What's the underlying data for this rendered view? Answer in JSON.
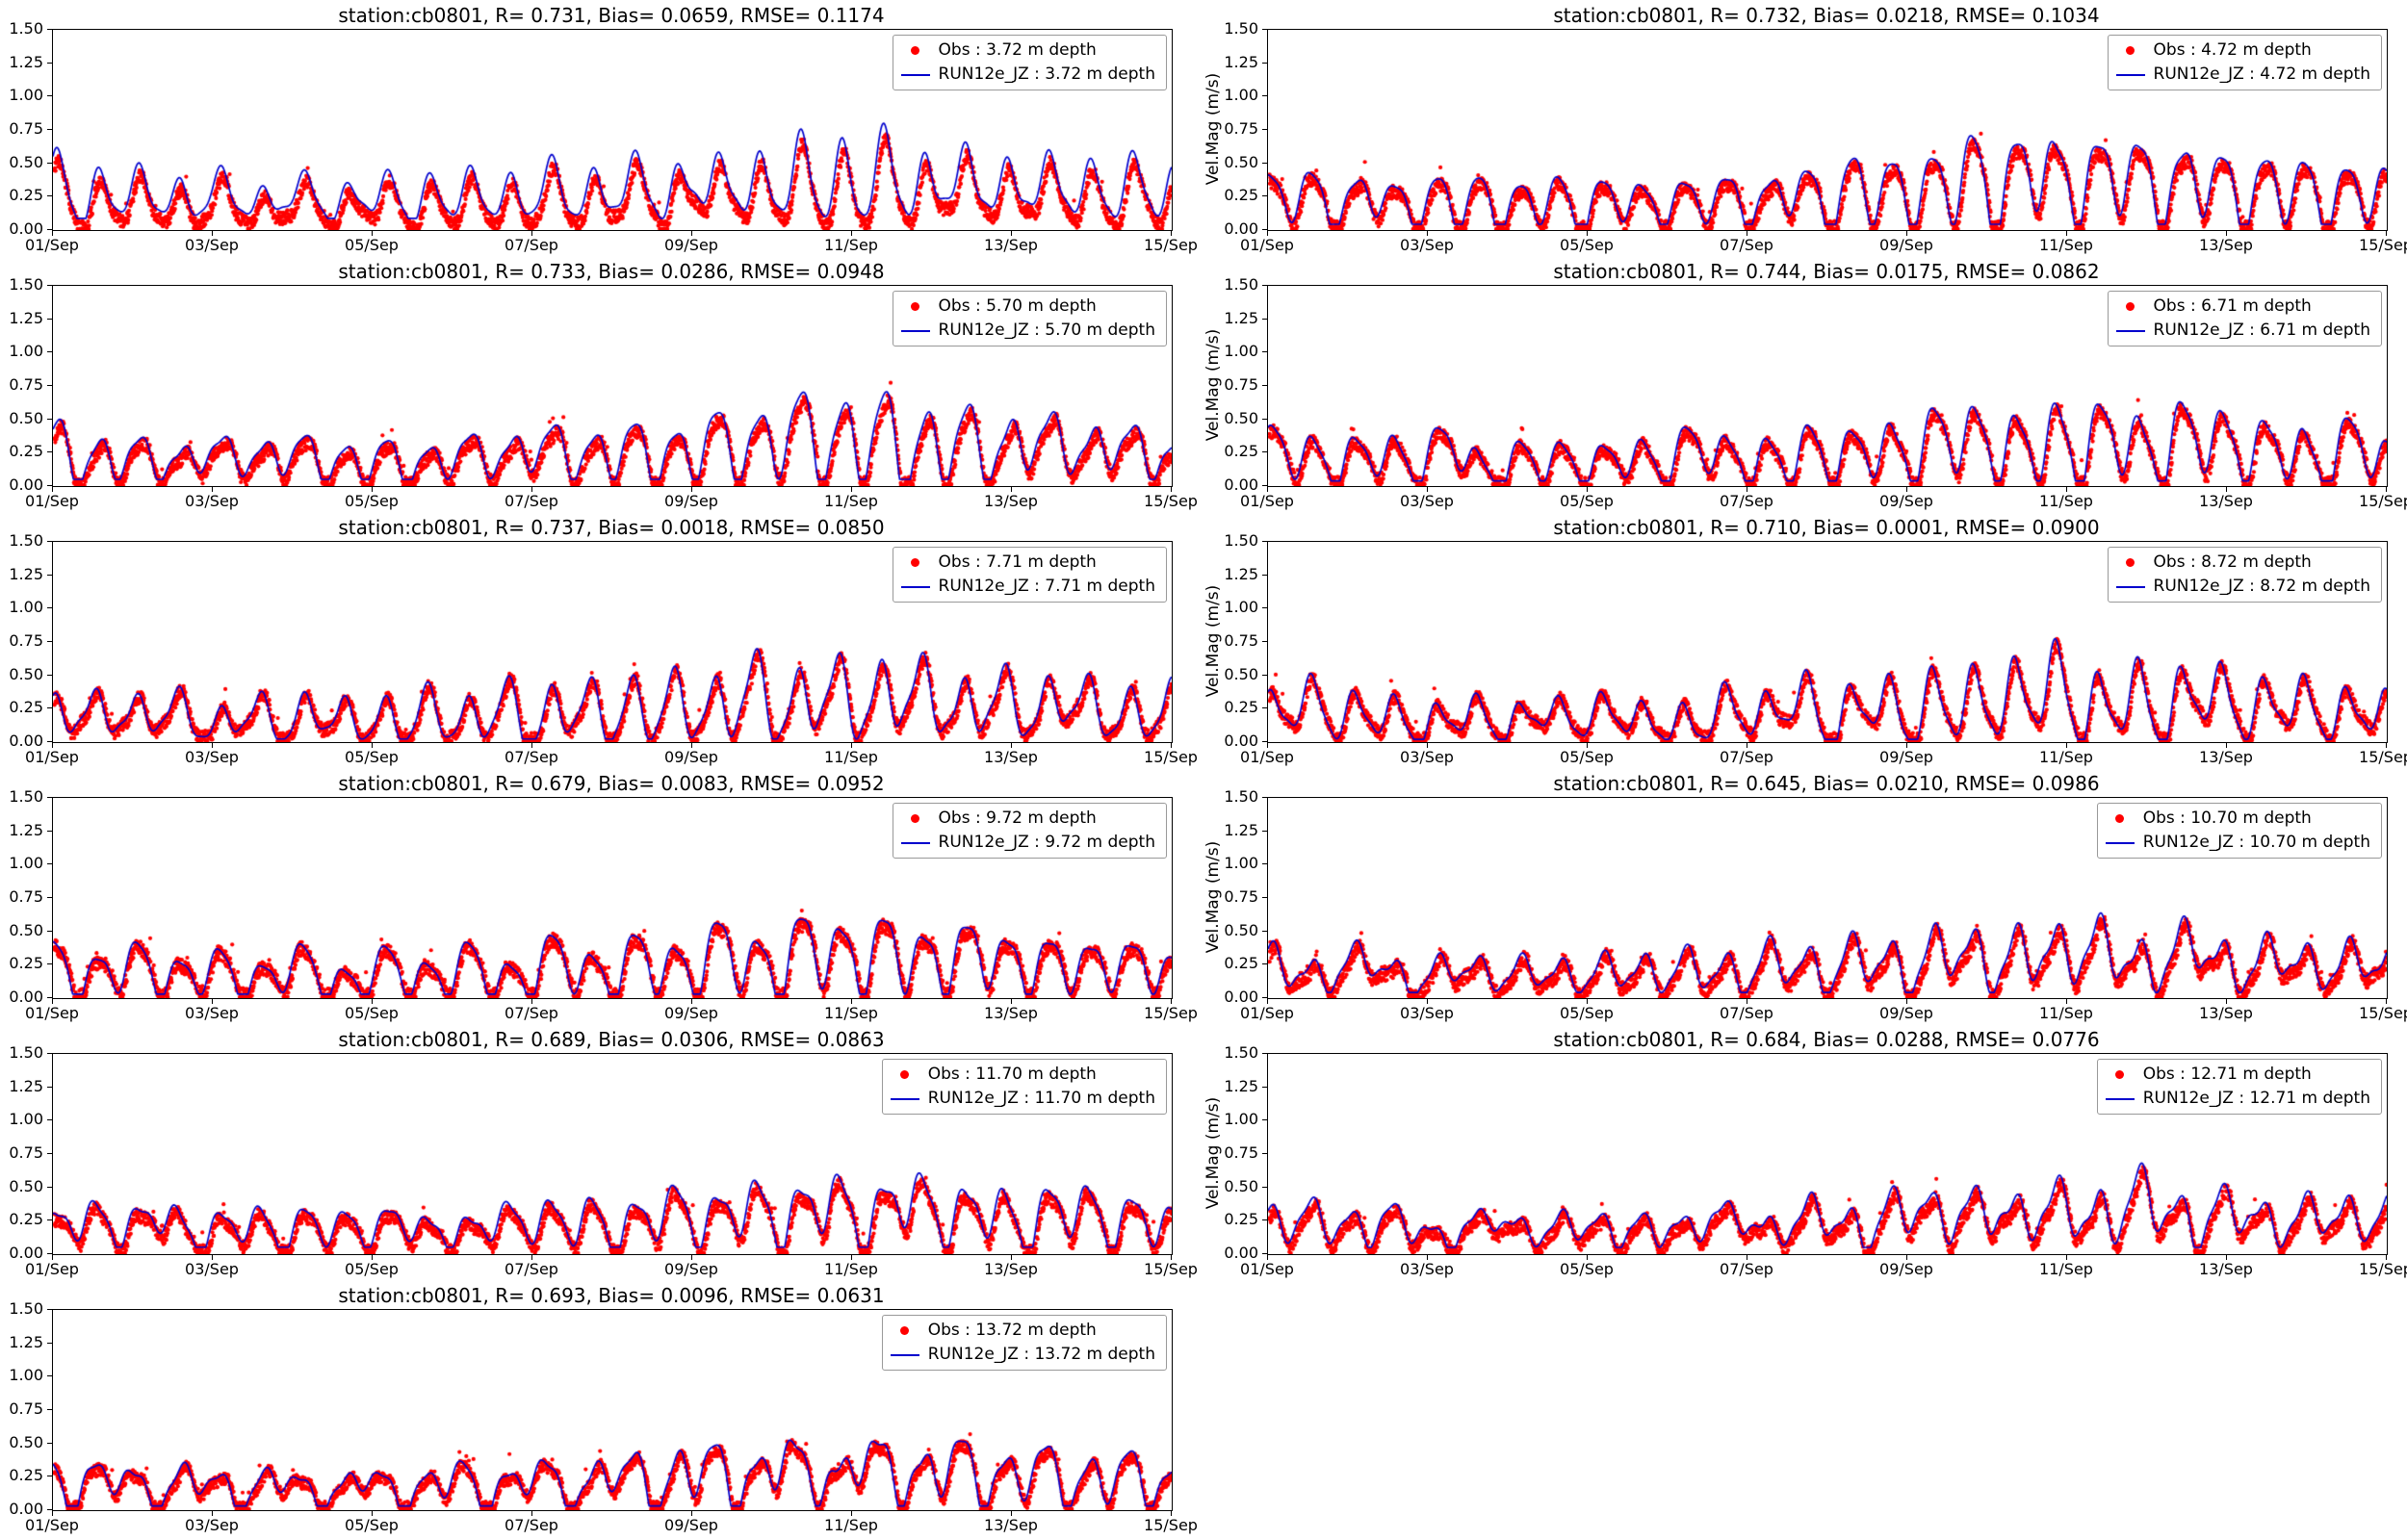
{
  "figure": {
    "background": "#ffffff",
    "text_color": "#000000"
  },
  "chart_data": {
    "type": "line+scatter",
    "station": "cb0801",
    "layout": {
      "rows": 6,
      "cols": 2,
      "note": "11 panels, last row left column only"
    },
    "ylim": [
      0.0,
      1.5
    ],
    "x_range_days": 14,
    "x_start_label": "01/Sep",
    "x_end_label": "15/Sep",
    "y_tick_labels": [
      "1.50",
      "1.25",
      "1.00",
      "0.75",
      "0.50",
      "0.25",
      "0.00"
    ],
    "x_tick_labels": [
      "01/Sep",
      "03/Sep",
      "05/Sep",
      "07/Sep",
      "09/Sep",
      "11/Sep",
      "13/Sep",
      "15/Sep"
    ],
    "colors": {
      "obs": "#ff0000",
      "model": "#0000cd",
      "axis": "#000000"
    },
    "series_names": [
      "Obs",
      "RUN12e_JZ"
    ],
    "panels": [
      {
        "title": "station:cb0801, R= 0.731, Bias= 0.0659, RMSE= 0.1174",
        "R": 0.731,
        "bias": 0.0659,
        "rmse": 0.1174,
        "depth_m": 3.72,
        "ylabel": "",
        "legend": [
          {
            "label": "Obs : 3.72 m depth"
          },
          {
            "label": "RUN12e_JZ : 3.72 m depth"
          }
        ],
        "sim": {
          "seed": 11,
          "base": 0.26,
          "amp": 0.21,
          "peak": 0.1,
          "model_bias": 0.066,
          "obs_noise": 0.05
        }
      },
      {
        "title": "station:cb0801, R= 0.732, Bias= 0.0218, RMSE= 0.1034",
        "R": 0.732,
        "bias": 0.0218,
        "rmse": 0.1034,
        "depth_m": 4.72,
        "ylabel": "Vel.Mag (m/s)",
        "legend": [
          {
            "label": "Obs : 4.72 m depth"
          },
          {
            "label": "RUN12e_JZ : 4.72 m depth"
          }
        ],
        "sim": {
          "seed": 12,
          "base": 0.27,
          "amp": 0.23,
          "peak": 0.32,
          "model_bias": 0.022,
          "obs_noise": 0.05
        }
      },
      {
        "title": "station:cb0801, R= 0.733, Bias= 0.0286, RMSE= 0.0948",
        "R": 0.733,
        "bias": 0.0286,
        "rmse": 0.0948,
        "depth_m": 5.7,
        "ylabel": "",
        "legend": [
          {
            "label": "Obs : 5.70 m depth"
          },
          {
            "label": "RUN12e_JZ : 5.70 m depth"
          }
        ],
        "sim": {
          "seed": 13,
          "base": 0.26,
          "amp": 0.22,
          "peak": 0.12,
          "model_bias": 0.029,
          "obs_noise": 0.05
        }
      },
      {
        "title": "station:cb0801, R= 0.744, Bias= 0.0175, RMSE= 0.0862",
        "R": 0.744,
        "bias": 0.0175,
        "rmse": 0.0862,
        "depth_m": 6.71,
        "ylabel": "Vel.Mag (m/s)",
        "legend": [
          {
            "label": "Obs : 6.71 m depth"
          },
          {
            "label": "RUN12e_JZ : 6.71 m depth"
          }
        ],
        "sim": {
          "seed": 14,
          "base": 0.26,
          "amp": 0.22,
          "peak": 0.16,
          "model_bias": 0.018,
          "obs_noise": 0.05
        }
      },
      {
        "title": "station:cb0801, R= 0.737, Bias= 0.0018, RMSE= 0.0850",
        "R": 0.737,
        "bias": 0.0018,
        "rmse": 0.085,
        "depth_m": 7.71,
        "ylabel": "",
        "legend": [
          {
            "label": "Obs : 7.71 m depth"
          },
          {
            "label": "RUN12e_JZ : 7.71 m depth"
          }
        ],
        "sim": {
          "seed": 15,
          "base": 0.26,
          "amp": 0.22,
          "peak": 0.18,
          "model_bias": 0.002,
          "obs_noise": 0.05
        }
      },
      {
        "title": "station:cb0801, R= 0.710, Bias= 0.0001, RMSE= 0.0900",
        "R": 0.71,
        "bias": 0.0001,
        "rmse": 0.09,
        "depth_m": 8.72,
        "ylabel": "Vel.Mag (m/s)",
        "legend": [
          {
            "label": "Obs : 8.72 m depth"
          },
          {
            "label": "RUN12e_JZ : 8.72 m depth"
          }
        ],
        "sim": {
          "seed": 16,
          "base": 0.26,
          "amp": 0.21,
          "peak": 0.16,
          "model_bias": 0.0,
          "obs_noise": 0.05
        }
      },
      {
        "title": "station:cb0801, R= 0.679, Bias= 0.0083, RMSE= 0.0952",
        "R": 0.679,
        "bias": 0.0083,
        "rmse": 0.0952,
        "depth_m": 9.72,
        "ylabel": "",
        "legend": [
          {
            "label": "Obs : 9.72 m depth"
          },
          {
            "label": "RUN12e_JZ : 9.72 m depth"
          }
        ],
        "sim": {
          "seed": 17,
          "base": 0.25,
          "amp": 0.21,
          "peak": 0.2,
          "model_bias": 0.008,
          "obs_noise": 0.055
        }
      },
      {
        "title": "station:cb0801, R= 0.645, Bias= 0.0210, RMSE= 0.0986",
        "R": 0.645,
        "bias": 0.021,
        "rmse": 0.0986,
        "depth_m": 10.7,
        "ylabel": "Vel.Mag (m/s)",
        "legend": [
          {
            "label": "Obs : 10.70 m depth"
          },
          {
            "label": "RUN12e_JZ : 10.70 m depth"
          }
        ],
        "sim": {
          "seed": 18,
          "base": 0.25,
          "amp": 0.19,
          "peak": 0.16,
          "model_bias": 0.021,
          "obs_noise": 0.055
        }
      },
      {
        "title": "station:cb0801, R= 0.689, Bias= 0.0306, RMSE= 0.0863",
        "R": 0.689,
        "bias": 0.0306,
        "rmse": 0.0863,
        "depth_m": 11.7,
        "ylabel": "",
        "legend": [
          {
            "label": "Obs : 11.70 m depth"
          },
          {
            "label": "RUN12e_JZ : 11.70 m depth"
          }
        ],
        "sim": {
          "seed": 19,
          "base": 0.25,
          "amp": 0.18,
          "peak": 0.15,
          "model_bias": 0.031,
          "obs_noise": 0.05
        }
      },
      {
        "title": "station:cb0801, R= 0.684, Bias= 0.0288, RMSE= 0.0776",
        "R": 0.684,
        "bias": 0.0288,
        "rmse": 0.0776,
        "depth_m": 12.71,
        "ylabel": "Vel.Mag (m/s)",
        "legend": [
          {
            "label": "Obs : 12.71 m depth"
          },
          {
            "label": "RUN12e_JZ : 12.71 m depth"
          }
        ],
        "sim": {
          "seed": 20,
          "base": 0.25,
          "amp": 0.17,
          "peak": 0.12,
          "model_bias": 0.029,
          "obs_noise": 0.05
        }
      },
      {
        "title": "station:cb0801, R= 0.693, Bias= 0.0096, RMSE= 0.0631",
        "R": 0.693,
        "bias": 0.0096,
        "rmse": 0.0631,
        "depth_m": 13.72,
        "ylabel": "",
        "legend": [
          {
            "label": "Obs : 13.72 m depth"
          },
          {
            "label": "RUN12e_JZ : 13.72 m depth"
          }
        ],
        "sim": {
          "seed": 21,
          "base": 0.24,
          "amp": 0.16,
          "peak": 0.15,
          "model_bias": 0.01,
          "obs_noise": 0.045
        }
      }
    ]
  }
}
